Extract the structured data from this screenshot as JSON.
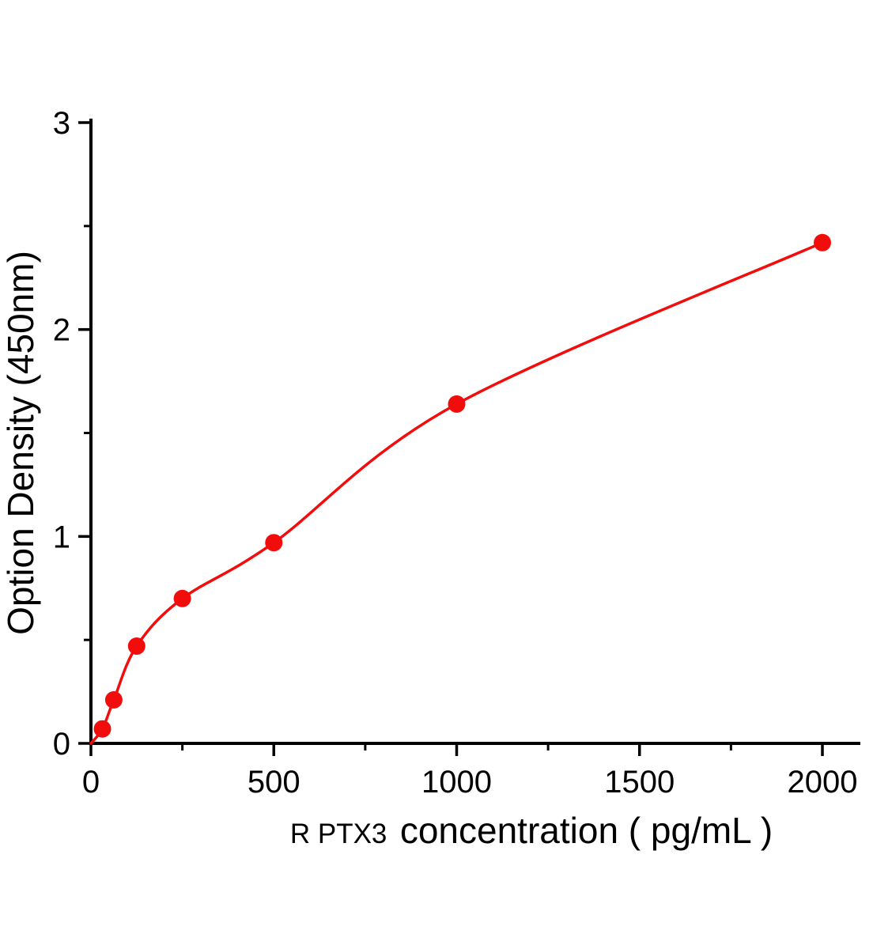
{
  "chart_data": {
    "type": "scatter",
    "title": "",
    "xlabel_prefix": "R PTX3",
    "xlabel_main": "concentration ( pg/mL )",
    "ylabel": "Option Density (450nm)",
    "x": [
      31.25,
      62.5,
      125,
      250,
      500,
      1000,
      2000
    ],
    "y": [
      0.07,
      0.21,
      0.47,
      0.7,
      0.97,
      1.64,
      2.42
    ],
    "curve_start": {
      "x": 0,
      "y": 0
    },
    "xlim": [
      0,
      2000
    ],
    "ylim": [
      0,
      3
    ],
    "xticks_major": [
      0,
      500,
      1000,
      1500,
      2000
    ],
    "xticks_minor": [
      250,
      750,
      1250,
      1750
    ],
    "yticks_major": [
      0,
      1,
      2,
      3
    ],
    "yticks_minor": [
      0.5,
      1.5,
      2.5
    ],
    "legend": "none",
    "grid": "off",
    "colors": {
      "accent": "#f20d0d",
      "axis": "#000000",
      "background": "#ffffff"
    }
  }
}
